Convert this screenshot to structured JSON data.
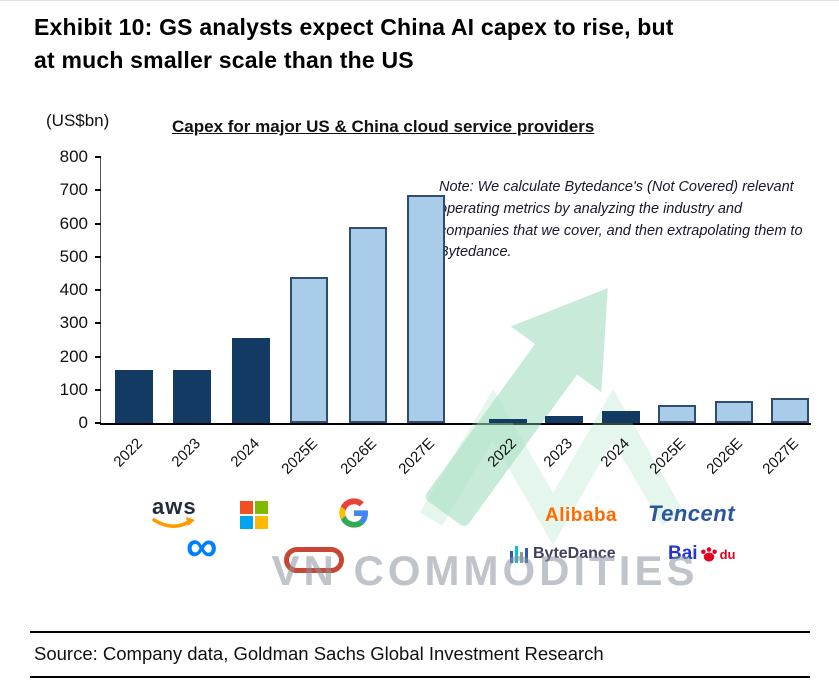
{
  "header": {
    "title_line1": "Exhibit 10: GS analysts expect China AI capex to rise, but",
    "title_line2": "at much smaller scale than the US"
  },
  "chart_data": {
    "type": "bar",
    "title": "Capex for major US & China cloud service providers",
    "unit_label": "(US$bn)",
    "ylim": [
      0,
      800
    ],
    "yticks": [
      0,
      100,
      200,
      300,
      400,
      500,
      600,
      700,
      800
    ],
    "grid": false,
    "legend": "none",
    "note": "Note: We calculate Bytedance's (Not Covered) relevant operating metrics by analyzing the industry and companies that we cover, and then extrapolating them to Bytedance.",
    "bar_colors": {
      "actual": "#123A63",
      "estimate": "#A9CDE9",
      "estimate_border": "#2E4D71"
    },
    "groups": [
      {
        "name": "US",
        "categories": [
          "2022",
          "2023",
          "2024",
          "2025E",
          "2026E",
          "2027E"
        ],
        "values": [
          160,
          160,
          255,
          440,
          590,
          685
        ],
        "styles": [
          "actual",
          "actual",
          "actual",
          "estimate",
          "estimate",
          "estimate"
        ]
      },
      {
        "name": "China",
        "categories": [
          "2022",
          "2023",
          "2024",
          "2025E",
          "2026E",
          "2027E"
        ],
        "values": [
          12,
          20,
          35,
          55,
          65,
          75
        ],
        "styles": [
          "actual",
          "actual",
          "actual",
          "estimate",
          "estimate",
          "estimate"
        ]
      }
    ]
  },
  "logos": {
    "us_brands": [
      "aws",
      "Microsoft",
      "Google",
      "Meta",
      "Oracle"
    ],
    "china_brands": [
      "Alibaba",
      "Tencent",
      "ByteDance",
      "Baidu"
    ],
    "us": {
      "aws": "aws"
    },
    "china": {
      "alibaba": "Alibaba",
      "tencent": "Tencent",
      "bytedance": "ByteDance",
      "baidu_bai": "Bai",
      "baidu_du": "du"
    }
  },
  "watermark": "VN COMMODITIES",
  "footer": {
    "source": "Source: Company data, Goldman Sachs Global Investment Research"
  }
}
